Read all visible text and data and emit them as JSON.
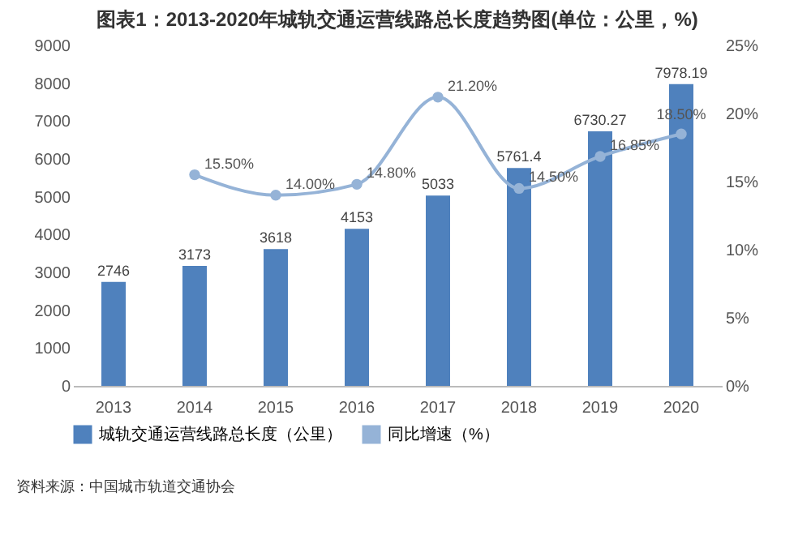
{
  "chart_data": {
    "type": "bar",
    "title": "图表1：2013-2020年城轨交通运营线路总长度趋势图(单位：公里，%)",
    "categories": [
      "2013",
      "2014",
      "2015",
      "2016",
      "2017",
      "2018",
      "2019",
      "2020"
    ],
    "series": [
      {
        "name": "城轨交通运营线路总长度（公里）",
        "color": "#4f81bd",
        "values": [
          2746,
          3173,
          3618,
          4153,
          5033,
          5761.4,
          6730.27,
          7978.19
        ],
        "value_labels": [
          "2746",
          "3173",
          "3618",
          "4153",
          "5033",
          "5761.4",
          "6730.27",
          "7978.19"
        ]
      },
      {
        "name": "同比增速（%）",
        "type": "line",
        "axis": "y2",
        "color": "#95b3d7",
        "values": [
          null,
          15.5,
          14.0,
          14.8,
          21.2,
          14.5,
          16.85,
          18.5
        ],
        "value_labels": [
          null,
          "15.50%",
          "14.00%",
          "14.80%",
          "21.20%",
          "14.50%",
          "16.85%",
          "18.50%"
        ]
      }
    ],
    "ylim": [
      0,
      9000
    ],
    "yticks": [
      0,
      1000,
      2000,
      3000,
      4000,
      5000,
      6000,
      7000,
      8000,
      9000
    ],
    "y2lim": [
      0,
      25
    ],
    "y2ticks": [
      {
        "value": 0,
        "label": "0%"
      },
      {
        "value": 5,
        "label": "5%"
      },
      {
        "value": 10,
        "label": "10%"
      },
      {
        "value": 15,
        "label": "15%"
      },
      {
        "value": 20,
        "label": "20%"
      },
      {
        "value": 25,
        "label": "25%"
      }
    ],
    "marker": "circle",
    "legend": "bottom",
    "annotations": [
      "资料来源：中国城市轨道交通协会"
    ]
  }
}
